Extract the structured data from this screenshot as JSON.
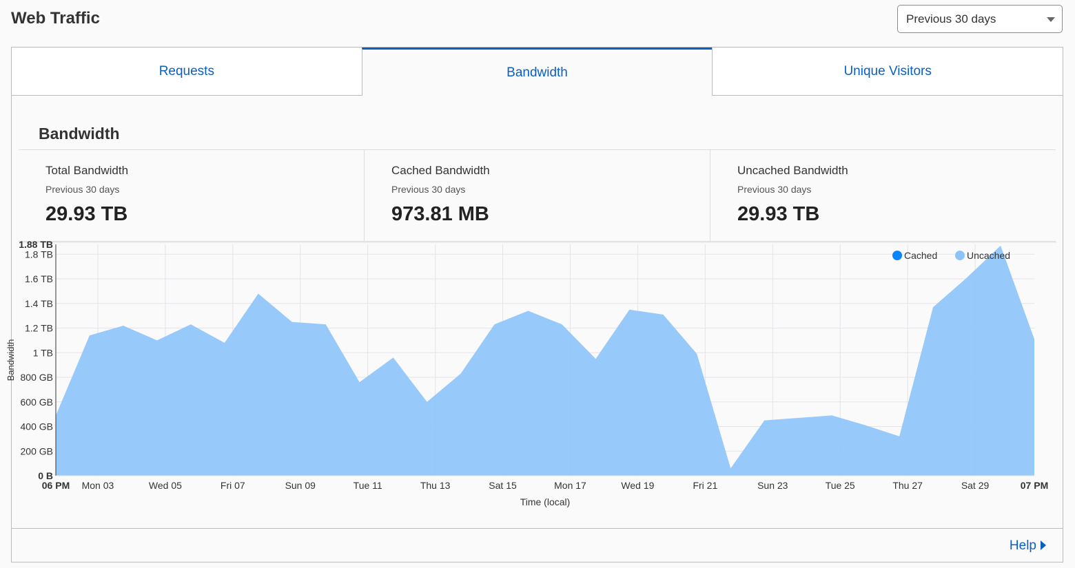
{
  "header": {
    "title": "Web Traffic",
    "range_select": "Previous 30 days"
  },
  "tabs": [
    {
      "label": "Requests"
    },
    {
      "label": "Bandwidth"
    },
    {
      "label": "Unique Visitors"
    }
  ],
  "section": {
    "title": "Bandwidth"
  },
  "stats": [
    {
      "label": "Total Bandwidth",
      "sub": "Previous 30 days",
      "value": "29.93 TB"
    },
    {
      "label": "Cached Bandwidth",
      "sub": "Previous 30 days",
      "value": "973.81 MB"
    },
    {
      "label": "Uncached Bandwidth",
      "sub": "Previous 30 days",
      "value": "29.93 TB"
    }
  ],
  "footer": {
    "help": "Help"
  },
  "chart_data": {
    "type": "area",
    "xlabel": "Time (local)",
    "ylabel": "Bandwidth",
    "ylim": [
      0,
      1.88
    ],
    "y_unit": "TB",
    "y_ticks": [
      {
        "v": 0,
        "label": "0 B"
      },
      {
        "v": 0.2,
        "label": "200 GB"
      },
      {
        "v": 0.4,
        "label": "400 GB"
      },
      {
        "v": 0.6,
        "label": "600 GB"
      },
      {
        "v": 0.8,
        "label": "800 GB"
      },
      {
        "v": 1.0,
        "label": "1 TB"
      },
      {
        "v": 1.2,
        "label": "1.2 TB"
      },
      {
        "v": 1.4,
        "label": "1.4 TB"
      },
      {
        "v": 1.6,
        "label": "1.6 TB"
      },
      {
        "v": 1.8,
        "label": "1.8 TB"
      },
      {
        "v": 1.88,
        "label": "1.88 TB"
      }
    ],
    "x_start_label": "06 PM",
    "x_end_label": "07 PM",
    "x_ticks": [
      "Mon 03",
      "Wed 05",
      "Fri 07",
      "Sun 09",
      "Tue 11",
      "Thu 13",
      "Sat 15",
      "Mon 17",
      "Wed 19",
      "Fri 21",
      "Sun 23",
      "Tue 25",
      "Thu 27",
      "Sat 29"
    ],
    "grid": true,
    "legend_position": "top-right",
    "series": [
      {
        "name": "Cached",
        "color": "#0a84ff",
        "values": [
          0,
          0,
          0,
          0,
          0,
          0,
          0,
          0,
          0,
          0,
          0,
          0,
          0,
          0,
          0,
          0,
          0,
          0,
          0,
          0,
          0,
          0,
          0,
          0,
          0,
          0,
          0,
          0,
          0,
          0
        ]
      },
      {
        "name": "Uncached",
        "color": "#8cc4fa",
        "values": [
          0.49,
          1.14,
          1.22,
          1.1,
          1.23,
          1.08,
          1.48,
          1.25,
          1.23,
          0.76,
          0.96,
          0.6,
          0.83,
          1.23,
          1.34,
          1.23,
          0.95,
          1.35,
          1.31,
          0.99,
          0.06,
          0.45,
          0.47,
          0.49,
          0.41,
          0.32,
          1.37,
          1.61,
          1.87,
          1.11
        ]
      }
    ]
  }
}
